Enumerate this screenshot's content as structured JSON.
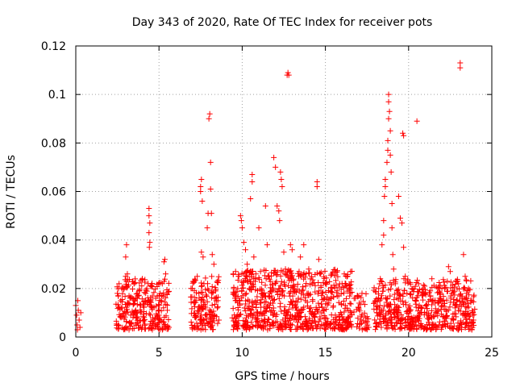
{
  "chart_data": {
    "type": "scatter",
    "title": "Day 343 of 2020, Rate Of TEC Index for receiver pots",
    "xlabel": "GPS time / hours",
    "ylabel": "ROTI / TECUs",
    "xlim": [
      0,
      25
    ],
    "ylim": [
      0,
      0.12
    ],
    "xticks": [
      0,
      5,
      10,
      15,
      20,
      25
    ],
    "xtick_labels": [
      "0",
      "5",
      "10",
      "15",
      "20",
      "25"
    ],
    "yticks": [
      0,
      0.02,
      0.04,
      0.06,
      0.08,
      0.1,
      0.12
    ],
    "ytick_labels": [
      "0",
      "0.02",
      "0.04",
      "0.06",
      "0.08",
      "0.1",
      "0.12"
    ],
    "grid": true,
    "marker": "+",
    "color": "#ff0000",
    "series": [
      {
        "name": "ROTI",
        "points": [
          [
            0.0,
            0.013
          ],
          [
            0.05,
            0.009
          ],
          [
            0.08,
            0.005
          ],
          [
            0.1,
            0.003
          ],
          [
            0.12,
            0.015
          ],
          [
            0.15,
            0.011
          ],
          [
            0.2,
            0.007
          ],
          [
            0.25,
            0.004
          ],
          [
            0.3,
            0.01
          ],
          [
            2.5,
            0.018
          ],
          [
            2.6,
            0.022
          ],
          [
            2.7,
            0.015
          ],
          [
            2.8,
            0.012
          ],
          [
            2.9,
            0.02
          ],
          [
            3.0,
            0.025
          ],
          [
            3.1,
            0.014
          ],
          [
            3.2,
            0.017
          ],
          [
            3.0,
            0.033
          ],
          [
            3.05,
            0.038
          ],
          [
            3.1,
            0.026
          ],
          [
            3.3,
            0.009
          ],
          [
            3.4,
            0.016
          ],
          [
            3.5,
            0.022
          ],
          [
            3.6,
            0.011
          ],
          [
            3.7,
            0.006
          ],
          [
            3.8,
            0.019
          ],
          [
            3.9,
            0.013
          ],
          [
            4.0,
            0.024
          ],
          [
            4.1,
            0.008
          ],
          [
            4.2,
            0.018
          ],
          [
            4.3,
            0.014
          ],
          [
            4.4,
            0.053
          ],
          [
            4.4,
            0.05
          ],
          [
            4.45,
            0.047
          ],
          [
            4.4,
            0.043
          ],
          [
            4.45,
            0.039
          ],
          [
            4.42,
            0.037
          ],
          [
            4.5,
            0.021
          ],
          [
            4.6,
            0.012
          ],
          [
            4.7,
            0.007
          ],
          [
            4.8,
            0.016
          ],
          [
            4.9,
            0.005
          ],
          [
            5.0,
            0.009
          ],
          [
            5.1,
            0.015
          ],
          [
            5.2,
            0.022
          ],
          [
            5.3,
            0.031
          ],
          [
            5.35,
            0.032
          ],
          [
            5.4,
            0.026
          ],
          [
            5.5,
            0.011
          ],
          [
            5.6,
            0.004
          ],
          [
            2.55,
            0.005
          ],
          [
            3.2,
            0.003
          ],
          [
            4.0,
            0.004
          ],
          [
            4.6,
            0.003
          ],
          [
            5.2,
            0.003
          ],
          [
            7.0,
            0.02
          ],
          [
            7.1,
            0.014
          ],
          [
            7.2,
            0.008
          ],
          [
            7.3,
            0.025
          ],
          [
            7.4,
            0.018
          ],
          [
            7.5,
            0.062
          ],
          [
            7.55,
            0.065
          ],
          [
            7.5,
            0.06
          ],
          [
            7.6,
            0.056
          ],
          [
            7.55,
            0.035
          ],
          [
            7.65,
            0.033
          ],
          [
            7.7,
            0.022
          ],
          [
            7.8,
            0.012
          ],
          [
            7.9,
            0.045
          ],
          [
            7.95,
            0.051
          ],
          [
            8.0,
            0.09
          ],
          [
            8.05,
            0.092
          ],
          [
            8.1,
            0.072
          ],
          [
            8.1,
            0.061
          ],
          [
            8.15,
            0.051
          ],
          [
            8.2,
            0.034
          ],
          [
            8.3,
            0.03
          ],
          [
            8.4,
            0.019
          ],
          [
            8.5,
            0.012
          ],
          [
            8.6,
            0.007
          ],
          [
            7.1,
            0.004
          ],
          [
            7.6,
            0.005
          ],
          [
            8.2,
            0.006
          ],
          [
            8.4,
            0.016
          ],
          [
            9.5,
            0.02
          ],
          [
            9.6,
            0.015
          ],
          [
            9.7,
            0.009
          ],
          [
            9.8,
            0.025
          ],
          [
            9.9,
            0.05
          ],
          [
            9.95,
            0.048
          ],
          [
            10.0,
            0.045
          ],
          [
            10.1,
            0.039
          ],
          [
            10.2,
            0.036
          ],
          [
            10.3,
            0.03
          ],
          [
            10.5,
            0.057
          ],
          [
            10.6,
            0.067
          ],
          [
            10.6,
            0.064
          ],
          [
            10.7,
            0.033
          ],
          [
            10.8,
            0.024
          ],
          [
            10.9,
            0.015
          ],
          [
            11.0,
            0.045
          ],
          [
            11.1,
            0.027
          ],
          [
            11.2,
            0.018
          ],
          [
            11.3,
            0.01
          ],
          [
            11.4,
            0.054
          ],
          [
            11.5,
            0.038
          ],
          [
            11.6,
            0.025
          ],
          [
            11.7,
            0.014
          ],
          [
            11.8,
            0.006
          ],
          [
            11.9,
            0.074
          ],
          [
            12.0,
            0.07
          ],
          [
            12.1,
            0.054
          ],
          [
            12.2,
            0.052
          ],
          [
            12.25,
            0.048
          ],
          [
            12.3,
            0.068
          ],
          [
            12.35,
            0.065
          ],
          [
            12.4,
            0.062
          ],
          [
            12.5,
            0.035
          ],
          [
            12.6,
            0.028
          ],
          [
            12.7,
            0.108
          ],
          [
            12.75,
            0.109
          ],
          [
            12.8,
            0.108
          ],
          [
            12.9,
            0.038
          ],
          [
            13.0,
            0.036
          ],
          [
            13.1,
            0.02
          ],
          [
            13.2,
            0.012
          ],
          [
            13.4,
            0.025
          ],
          [
            13.5,
            0.033
          ],
          [
            13.6,
            0.019
          ],
          [
            13.7,
            0.038
          ],
          [
            13.8,
            0.015
          ],
          [
            14.0,
            0.028
          ],
          [
            14.2,
            0.022
          ],
          [
            14.3,
            0.009
          ],
          [
            14.5,
            0.064
          ],
          [
            14.5,
            0.062
          ],
          [
            14.6,
            0.032
          ],
          [
            14.7,
            0.026
          ],
          [
            14.8,
            0.018
          ],
          [
            15.0,
            0.022
          ],
          [
            15.2,
            0.014
          ],
          [
            15.4,
            0.02
          ],
          [
            15.6,
            0.009
          ],
          [
            15.8,
            0.017
          ],
          [
            16.0,
            0.022
          ],
          [
            16.2,
            0.013
          ],
          [
            16.4,
            0.008
          ],
          [
            16.5,
            0.02
          ],
          [
            10.2,
            0.004
          ],
          [
            11.0,
            0.005
          ],
          [
            12.0,
            0.006
          ],
          [
            13.0,
            0.005
          ],
          [
            14.0,
            0.004
          ],
          [
            15.0,
            0.006
          ],
          [
            16.0,
            0.005
          ],
          [
            16.8,
            0.016
          ],
          [
            17.0,
            0.012
          ],
          [
            17.2,
            0.018
          ],
          [
            17.4,
            0.006
          ],
          [
            17.6,
            0.004
          ],
          [
            18.0,
            0.015
          ],
          [
            18.1,
            0.01
          ],
          [
            18.2,
            0.02
          ],
          [
            18.3,
            0.024
          ],
          [
            18.4,
            0.038
          ],
          [
            18.5,
            0.048
          ],
          [
            18.5,
            0.042
          ],
          [
            18.55,
            0.058
          ],
          [
            18.6,
            0.062
          ],
          [
            18.6,
            0.065
          ],
          [
            18.7,
            0.072
          ],
          [
            18.75,
            0.081
          ],
          [
            18.75,
            0.077
          ],
          [
            18.8,
            0.09
          ],
          [
            18.8,
            0.097
          ],
          [
            18.8,
            0.1
          ],
          [
            18.85,
            0.093
          ],
          [
            18.9,
            0.085
          ],
          [
            18.9,
            0.075
          ],
          [
            18.95,
            0.068
          ],
          [
            19.0,
            0.055
          ],
          [
            19.0,
            0.045
          ],
          [
            19.05,
            0.034
          ],
          [
            19.1,
            0.028
          ],
          [
            19.2,
            0.022
          ],
          [
            19.3,
            0.016
          ],
          [
            19.4,
            0.058
          ],
          [
            19.5,
            0.049
          ],
          [
            19.6,
            0.047
          ],
          [
            19.65,
            0.084
          ],
          [
            19.7,
            0.083
          ],
          [
            19.7,
            0.037
          ],
          [
            19.8,
            0.025
          ],
          [
            19.9,
            0.018
          ],
          [
            20.0,
            0.012
          ],
          [
            20.2,
            0.02
          ],
          [
            20.4,
            0.015
          ],
          [
            20.5,
            0.089
          ],
          [
            20.6,
            0.022
          ],
          [
            20.8,
            0.012
          ],
          [
            21.0,
            0.018
          ],
          [
            21.2,
            0.009
          ],
          [
            21.4,
            0.024
          ],
          [
            21.6,
            0.014
          ],
          [
            21.8,
            0.011
          ],
          [
            22.0,
            0.02
          ],
          [
            22.2,
            0.008
          ],
          [
            22.4,
            0.029
          ],
          [
            22.5,
            0.027
          ],
          [
            22.6,
            0.018
          ],
          [
            22.8,
            0.012
          ],
          [
            23.0,
            0.022
          ],
          [
            23.1,
            0.113
          ],
          [
            23.1,
            0.111
          ],
          [
            23.2,
            0.016
          ],
          [
            23.3,
            0.034
          ],
          [
            23.4,
            0.025
          ],
          [
            23.5,
            0.012
          ],
          [
            23.6,
            0.02
          ],
          [
            23.7,
            0.009
          ],
          [
            23.8,
            0.015
          ],
          [
            23.9,
            0.007
          ],
          [
            18.2,
            0.005
          ],
          [
            19.0,
            0.004
          ],
          [
            20.0,
            0.005
          ],
          [
            21.0,
            0.004
          ],
          [
            22.0,
            0.004
          ],
          [
            23.0,
            0.003
          ],
          [
            23.8,
            0.003
          ]
        ]
      }
    ],
    "scatter_bands": [
      {
        "x0": 2.4,
        "x1": 5.6,
        "y0": 0.003,
        "y1": 0.024,
        "count": 260
      },
      {
        "x0": 6.9,
        "x1": 8.6,
        "y0": 0.003,
        "y1": 0.025,
        "count": 140
      },
      {
        "x0": 9.4,
        "x1": 16.6,
        "y0": 0.003,
        "y1": 0.028,
        "count": 700
      },
      {
        "x0": 16.7,
        "x1": 17.6,
        "y0": 0.003,
        "y1": 0.018,
        "count": 40
      },
      {
        "x0": 17.9,
        "x1": 24.0,
        "y0": 0.003,
        "y1": 0.024,
        "count": 520
      }
    ]
  }
}
